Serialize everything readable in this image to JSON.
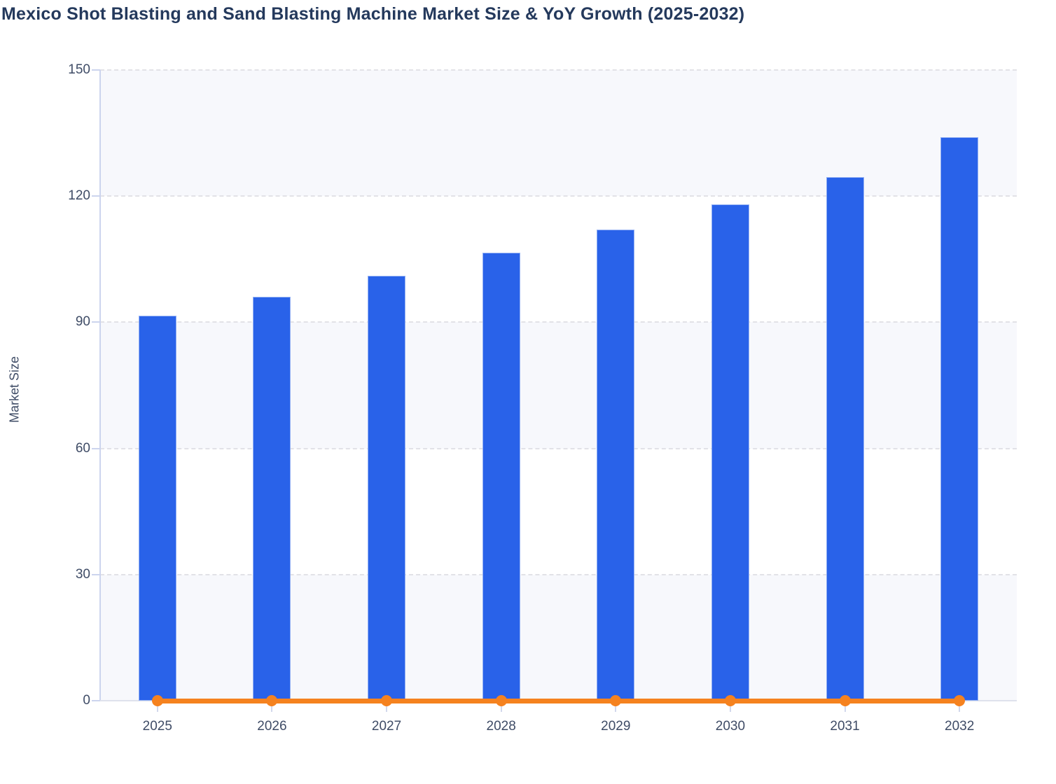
{
  "title": "Mexico Shot Blasting and Sand Blasting Machine Market Size & YoY Growth (2025-2032)",
  "y_axis": {
    "title": "Market Size",
    "tick_labels": [
      "0",
      "30",
      "60",
      "90",
      "120",
      "150"
    ],
    "ticks": [
      0,
      30,
      60,
      90,
      120,
      150
    ],
    "min": 0,
    "max": 150
  },
  "x_axis": {
    "categories": [
      "2025",
      "2026",
      "2027",
      "2028",
      "2029",
      "2030",
      "2031",
      "2032"
    ]
  },
  "colors": {
    "bar_fill": "#2962e9",
    "line": "#f5821f",
    "title_text": "#24395c",
    "axis_text": "#3f4c66",
    "gridline": "#e2e2e7",
    "y_axis_line": "#ccd4ee",
    "x_axis_line": "#dfe2ec",
    "plot_band": "#f7f8fc"
  },
  "chart_data": {
    "type": "bar",
    "title": "Mexico Shot Blasting and Sand Blasting Machine Market Size & YoY Growth (2025-2032)",
    "categories": [
      "2025",
      "2026",
      "2027",
      "2028",
      "2029",
      "2030",
      "2031",
      "2032"
    ],
    "series": [
      {
        "name": "Market Size",
        "type": "bar",
        "color": "#2962e9",
        "values": [
          91.5,
          96,
          101,
          106.5,
          112,
          118,
          124.5,
          134
        ]
      },
      {
        "name": "YoY Growth",
        "type": "line",
        "color": "#f5821f",
        "values": [
          0,
          0,
          0,
          0,
          0,
          0,
          0,
          0
        ]
      }
    ],
    "xlabel": "",
    "ylabel": "Market Size",
    "ylim": [
      0,
      150
    ],
    "grid": "horizontal-dashed",
    "plot_bands": "alternating-light",
    "legend_position": "none"
  }
}
